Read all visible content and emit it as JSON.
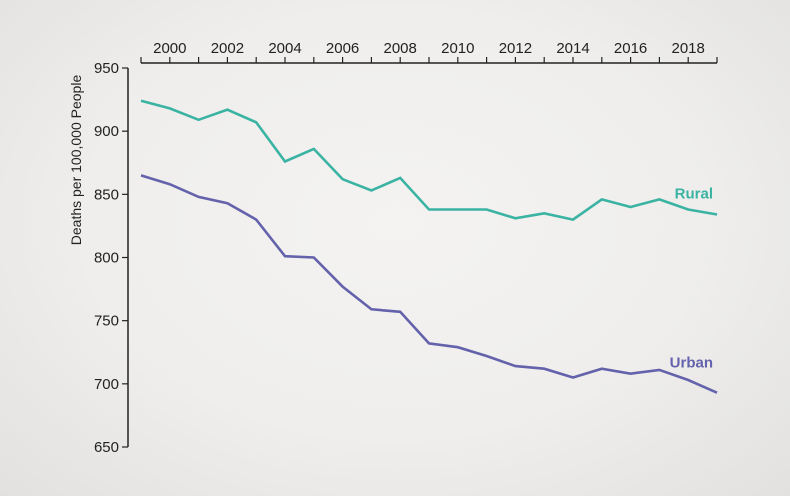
{
  "chart_data": {
    "type": "line",
    "title": "",
    "xlabel": "",
    "ylabel": "Deaths per 100,000 People",
    "x": [
      1999,
      2000,
      2001,
      2002,
      2003,
      2004,
      2005,
      2006,
      2007,
      2008,
      2009,
      2010,
      2011,
      2012,
      2013,
      2014,
      2015,
      2016,
      2017,
      2018,
      2019
    ],
    "xlim": [
      1999,
      2019
    ],
    "ylim": [
      650,
      950
    ],
    "x_tick_labels": [
      "2000",
      "2002",
      "2004",
      "2006",
      "2008",
      "2010",
      "2012",
      "2014",
      "2016",
      "2018"
    ],
    "x_tick_values": [
      2000,
      2002,
      2004,
      2006,
      2008,
      2010,
      2012,
      2014,
      2016,
      2018
    ],
    "y_tick_labels": [
      "950",
      "900",
      "850",
      "800",
      "750",
      "700",
      "650"
    ],
    "y_tick_values": [
      950,
      900,
      850,
      800,
      750,
      700,
      650
    ],
    "x_axis_position": "top",
    "grid": false,
    "legend": "inline-labels",
    "series": [
      {
        "name": "Rural",
        "color": "#3bb3a3",
        "values": [
          924,
          918,
          909,
          917,
          907,
          876,
          886,
          862,
          853,
          863,
          838,
          838,
          838,
          831,
          835,
          830,
          846,
          840,
          846,
          838,
          834
        ]
      },
      {
        "name": "Urban",
        "color": "#6462ab",
        "values": [
          865,
          858,
          848,
          843,
          830,
          801,
          800,
          777,
          759,
          757,
          732,
          729,
          722,
          714,
          712,
          705,
          712,
          708,
          711,
          703,
          693
        ]
      }
    ]
  }
}
